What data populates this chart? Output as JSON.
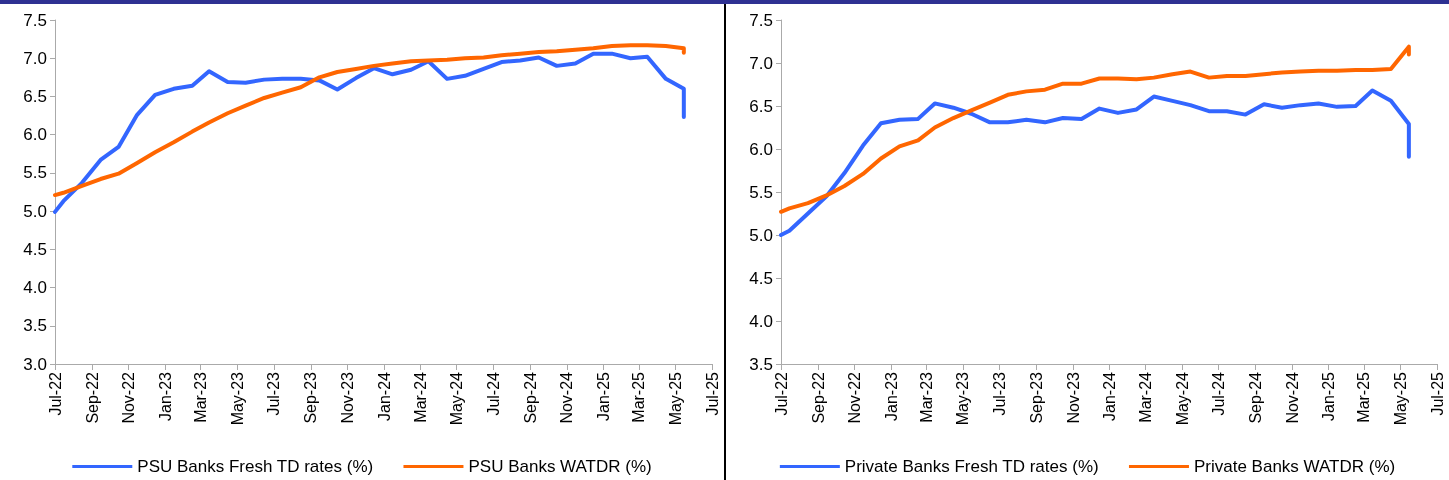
{
  "chart_data": [
    {
      "type": "line",
      "x": [
        "2022-07-01",
        "2022-07-15",
        "2022-08-15",
        "2022-09-15",
        "2022-10-15",
        "2022-11-15",
        "2022-12-15",
        "2023-01-15",
        "2023-02-15",
        "2023-03-15",
        "2023-04-15",
        "2023-05-15",
        "2023-06-15",
        "2023-07-15",
        "2023-08-15",
        "2023-09-15",
        "2023-10-15",
        "2023-11-15",
        "2023-12-15",
        "2024-01-15",
        "2024-02-15",
        "2024-03-15",
        "2024-04-15",
        "2024-05-15",
        "2024-06-15",
        "2024-07-15",
        "2024-08-15",
        "2024-09-15",
        "2024-10-15",
        "2024-11-15",
        "2024-12-15",
        "2025-01-15",
        "2025-02-15",
        "2025-03-15",
        "2025-04-15",
        "2025-05-15",
        "2025-05-15"
      ],
      "series": [
        {
          "name": "PSU Banks Fresh TD rates (%)",
          "color": "#3366ff",
          "values": [
            4.99,
            5.13,
            5.37,
            5.67,
            5.84,
            6.26,
            6.52,
            6.6,
            6.64,
            6.83,
            6.69,
            6.68,
            6.72,
            6.73,
            6.73,
            6.71,
            6.59,
            6.74,
            6.87,
            6.79,
            6.85,
            6.96,
            6.73,
            6.77,
            6.86,
            6.95,
            6.97,
            7.01,
            6.9,
            6.93,
            7.06,
            7.06,
            7.0,
            7.02,
            6.73,
            6.6,
            6.23
          ]
        },
        {
          "name": "PSU Banks WATDR (%)",
          "color": "#ff6600",
          "values": [
            5.21,
            5.24,
            5.33,
            5.42,
            5.49,
            5.63,
            5.77,
            5.9,
            6.04,
            6.16,
            6.28,
            6.38,
            6.48,
            6.55,
            6.62,
            6.75,
            6.82,
            6.86,
            6.9,
            6.93,
            6.96,
            6.97,
            6.98,
            7.0,
            7.01,
            7.04,
            7.06,
            7.08,
            7.09,
            7.11,
            7.13,
            7.16,
            7.17,
            7.17,
            7.16,
            7.13,
            7.07
          ]
        }
      ],
      "xlim": [
        "2022-07",
        "2025-07"
      ],
      "xticks": [
        {
          "value": "2022-07",
          "label": "Jul-22"
        },
        {
          "value": "2022-09",
          "label": "Sep-22"
        },
        {
          "value": "2022-11",
          "label": "Nov-22"
        },
        {
          "value": "2023-01",
          "label": "Jan-23"
        },
        {
          "value": "2023-03",
          "label": "Mar-23"
        },
        {
          "value": "2023-05",
          "label": "May-23"
        },
        {
          "value": "2023-07",
          "label": "Jul-23"
        },
        {
          "value": "2023-09",
          "label": "Sep-23"
        },
        {
          "value": "2023-11",
          "label": "Nov-23"
        },
        {
          "value": "2024-01",
          "label": "Jan-24"
        },
        {
          "value": "2024-03",
          "label": "Mar-24"
        },
        {
          "value": "2024-05",
          "label": "May-24"
        },
        {
          "value": "2024-07",
          "label": "Jul-24"
        },
        {
          "value": "2024-09",
          "label": "Sep-24"
        },
        {
          "value": "2024-11",
          "label": "Nov-24"
        },
        {
          "value": "2025-01",
          "label": "Jan-25"
        },
        {
          "value": "2025-03",
          "label": "Mar-25"
        },
        {
          "value": "2025-05",
          "label": "May-25"
        },
        {
          "value": "2025-07",
          "label": "Jul-25"
        }
      ],
      "ylim": [
        3.0,
        7.5
      ],
      "yticks": [
        {
          "value": 3,
          "label": "3.0"
        },
        3.5,
        {
          "value": 4,
          "label": "4.0"
        },
        4.5,
        {
          "value": 5,
          "label": "5.0"
        },
        5.5,
        {
          "value": 6,
          "label": "6.0"
        },
        6.5,
        {
          "value": 7,
          "label": "7.0"
        },
        7.5
      ],
      "grid": false,
      "legend": "bottom",
      "marker": "none",
      "line_style": "solid"
    },
    {
      "type": "line",
      "x": [
        "2022-07-01",
        "2022-07-15",
        "2022-08-15",
        "2022-09-15",
        "2022-10-15",
        "2022-11-15",
        "2022-12-15",
        "2023-01-15",
        "2023-02-15",
        "2023-03-15",
        "2023-04-15",
        "2023-05-15",
        "2023-06-15",
        "2023-07-15",
        "2023-08-15",
        "2023-09-15",
        "2023-10-15",
        "2023-11-15",
        "2023-12-15",
        "2024-01-15",
        "2024-02-15",
        "2024-03-15",
        "2024-04-15",
        "2024-05-15",
        "2024-06-15",
        "2024-07-15",
        "2024-08-15",
        "2024-09-15",
        "2024-10-15",
        "2024-11-15",
        "2024-12-15",
        "2025-01-15",
        "2025-02-15",
        "2025-03-15",
        "2025-04-15",
        "2025-05-15",
        "2025-05-15"
      ],
      "series": [
        {
          "name": "Private Banks Fresh TD rates (%)",
          "color": "#3366ff",
          "values": [
            5.0,
            5.05,
            5.25,
            5.45,
            5.72,
            6.04,
            6.3,
            6.34,
            6.35,
            6.53,
            6.48,
            6.41,
            6.31,
            6.31,
            6.34,
            6.31,
            6.36,
            6.35,
            6.47,
            6.42,
            6.46,
            6.61,
            6.56,
            6.51,
            6.44,
            6.44,
            6.4,
            6.52,
            6.48,
            6.51,
            6.53,
            6.49,
            6.5,
            6.68,
            6.56,
            6.29,
            5.91
          ]
        },
        {
          "name": "Private Banks WATDR (%)",
          "color": "#ff6600",
          "values": [
            5.27,
            5.31,
            5.37,
            5.46,
            5.57,
            5.71,
            5.89,
            6.03,
            6.1,
            6.25,
            6.36,
            6.45,
            6.54,
            6.63,
            6.67,
            6.69,
            6.76,
            6.76,
            6.82,
            6.82,
            6.81,
            6.83,
            6.87,
            6.9,
            6.83,
            6.85,
            6.85,
            6.87,
            6.89,
            6.9,
            6.91,
            6.91,
            6.92,
            6.92,
            6.93,
            7.19,
            7.1
          ]
        }
      ],
      "xlim": [
        "2022-07",
        "2025-07"
      ],
      "xticks": [
        {
          "value": "2022-07",
          "label": "Jul-22"
        },
        {
          "value": "2022-09",
          "label": "Sep-22"
        },
        {
          "value": "2022-11",
          "label": "Nov-22"
        },
        {
          "value": "2023-01",
          "label": "Jan-23"
        },
        {
          "value": "2023-03",
          "label": "Mar-23"
        },
        {
          "value": "2023-05",
          "label": "May-23"
        },
        {
          "value": "2023-07",
          "label": "Jul-23"
        },
        {
          "value": "2023-09",
          "label": "Sep-23"
        },
        {
          "value": "2023-11",
          "label": "Nov-23"
        },
        {
          "value": "2024-01",
          "label": "Jan-24"
        },
        {
          "value": "2024-03",
          "label": "Mar-24"
        },
        {
          "value": "2024-05",
          "label": "May-24"
        },
        {
          "value": "2024-07",
          "label": "Jul-24"
        },
        {
          "value": "2024-09",
          "label": "Sep-24"
        },
        {
          "value": "2024-11",
          "label": "Nov-24"
        },
        {
          "value": "2025-01",
          "label": "Jan-25"
        },
        {
          "value": "2025-03",
          "label": "Mar-25"
        },
        {
          "value": "2025-05",
          "label": "May-25"
        },
        {
          "value": "2025-07",
          "label": "Jul-25"
        }
      ],
      "ylim": [
        3.5,
        7.5
      ],
      "yticks": [
        3.5,
        {
          "value": 4,
          "label": "4.0"
        },
        4.5,
        {
          "value": 5,
          "label": "5.0"
        },
        5.5,
        {
          "value": 6,
          "label": "6.0"
        },
        6.5,
        {
          "value": 7,
          "label": "7.0"
        },
        7.5
      ],
      "grid": false,
      "legend": "bottom",
      "marker": "none",
      "line_style": "solid"
    }
  ]
}
